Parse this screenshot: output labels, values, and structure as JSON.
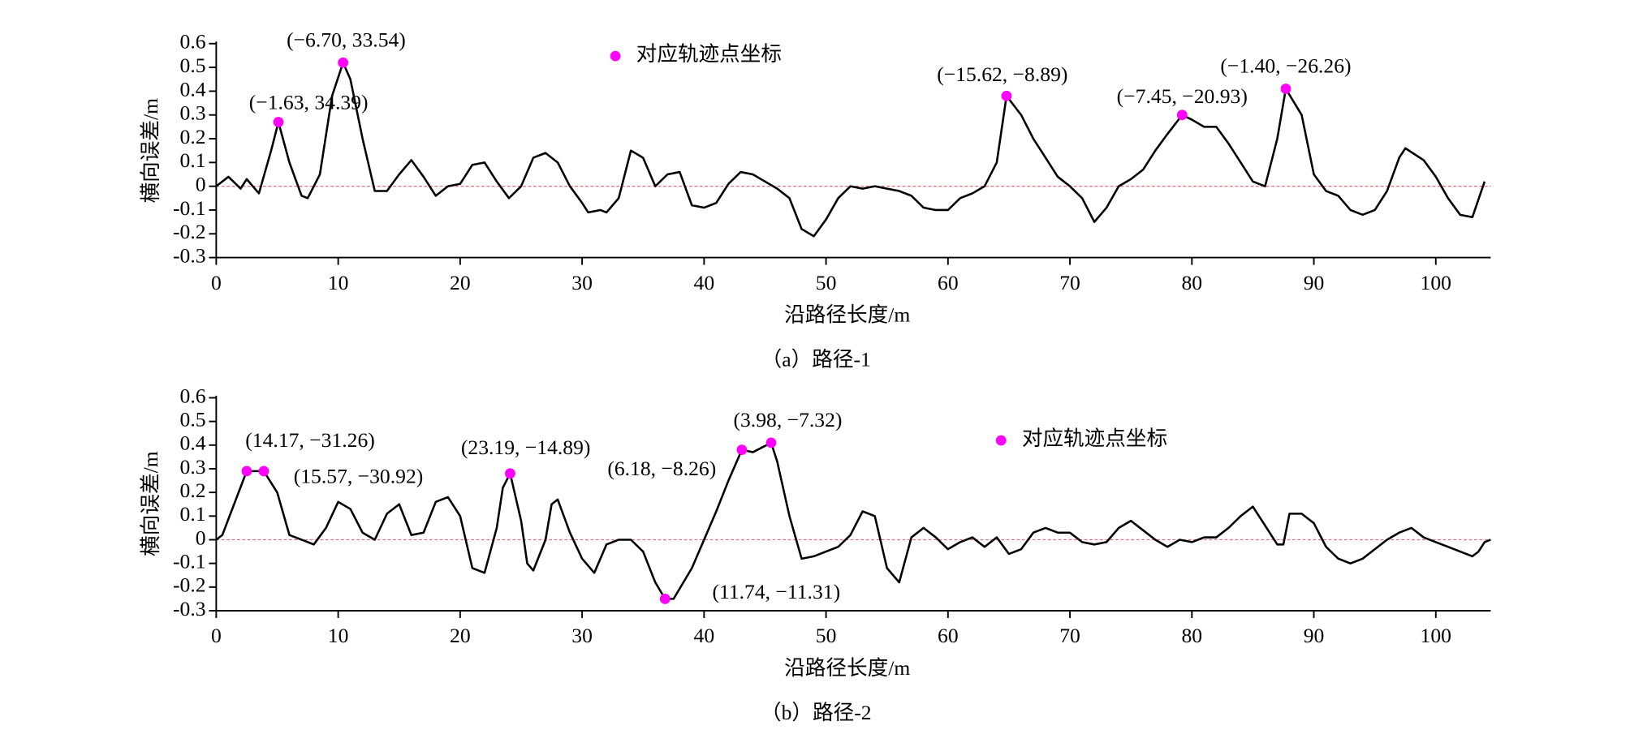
{
  "chart_data": [
    {
      "type": "line",
      "caption": "（a）路径-1",
      "xlabel": "沿路径长度/m",
      "ylabel": "横向误差/m",
      "x": [
        0,
        1,
        2,
        2.5,
        3.5,
        4.5,
        5.1,
        6,
        7,
        7.5,
        8.5,
        9.5,
        10.4,
        11,
        12,
        13,
        14,
        15,
        16,
        17,
        18,
        19,
        20,
        21,
        22,
        23,
        24,
        25,
        26,
        27,
        28,
        29,
        30,
        30.5,
        31.5,
        32,
        33,
        34,
        35,
        36,
        37,
        38,
        39,
        40,
        41,
        42,
        43,
        44,
        45,
        46,
        47,
        48,
        49,
        50,
        51,
        52,
        53,
        54,
        55,
        56,
        57,
        58,
        59,
        60,
        61,
        62,
        63,
        64,
        64.8,
        66,
        67,
        68,
        69,
        70,
        71,
        72,
        73,
        74,
        75,
        76,
        77,
        78,
        79.2,
        80,
        81,
        82,
        83,
        84,
        85,
        86,
        87,
        87.7,
        89,
        90,
        91,
        92,
        93,
        94,
        95,
        96,
        97,
        97.5,
        99,
        100,
        101,
        102,
        103,
        104
      ],
      "series": [
        {
          "color": "#000000",
          "values": [
            0,
            0.04,
            -0.01,
            0.03,
            -0.03,
            0.15,
            0.27,
            0.1,
            -0.04,
            -0.05,
            0.05,
            0.38,
            0.52,
            0.45,
            0.2,
            -0.02,
            -0.02,
            0.05,
            0.11,
            0.04,
            -0.04,
            0,
            0.01,
            0.09,
            0.1,
            0.02,
            -0.05,
            0,
            0.12,
            0.14,
            0.1,
            0,
            -0.07,
            -0.11,
            -0.1,
            -0.11,
            -0.05,
            0.15,
            0.12,
            0,
            0.05,
            0.06,
            -0.08,
            -0.09,
            -0.07,
            0.01,
            0.06,
            0.05,
            0.02,
            -0.01,
            -0.05,
            -0.18,
            -0.21,
            -0.14,
            -0.05,
            0,
            -0.01,
            0,
            -0.01,
            -0.02,
            -0.04,
            -0.09,
            -0.1,
            -0.1,
            -0.05,
            -0.03,
            0,
            0.1,
            0.38,
            0.3,
            0.2,
            0.12,
            0.04,
            0,
            -0.05,
            -0.15,
            -0.09,
            0,
            0.03,
            0.07,
            0.15,
            0.22,
            0.3,
            0.28,
            0.25,
            0.25,
            0.18,
            0.1,
            0.02,
            0,
            0.2,
            0.41,
            0.3,
            0.05,
            -0.02,
            -0.04,
            -0.1,
            -0.12,
            -0.1,
            -0.02,
            0.12,
            0.16,
            0.11,
            0.04,
            -0.05,
            -0.12,
            -0.13,
            0.02
          ]
        }
      ],
      "points": {
        "name": "对应轨迹点坐标",
        "color": "#ff00ff",
        "x": [
          5.1,
          10.4,
          64.8,
          79.2,
          87.7
        ],
        "y": [
          0.27,
          0.52,
          0.38,
          0.3,
          0.41
        ],
        "labels": [
          "(−1.63, 34.39)",
          "(−6.70, 33.54)",
          "(−15.62, −8.89)",
          "(−7.45, −20.93)",
          "(−1.40, −26.26)"
        ]
      },
      "hline": 0,
      "hline_color": "#e07080",
      "xlim": [
        0,
        104.5
      ],
      "xticks": [
        0,
        10,
        20,
        30,
        40,
        50,
        60,
        70,
        80,
        90,
        100
      ],
      "ylim": [
        -0.3,
        0.6
      ],
      "yticks": [
        -0.3,
        -0.2,
        -0.1,
        0,
        0.1,
        0.2,
        0.3,
        0.4,
        0.5,
        0.6
      ]
    },
    {
      "type": "line",
      "caption": "（b）路径-2",
      "xlabel": "沿路径长度/m",
      "ylabel": "横向误差/m",
      "x": [
        0,
        0.5,
        2.5,
        3.9,
        5,
        6,
        7,
        8,
        9,
        10,
        11,
        12,
        13,
        14,
        15,
        16,
        17,
        18,
        19,
        20,
        21,
        22,
        23,
        23.5,
        24.1,
        25,
        25.5,
        26,
        27,
        27.5,
        28,
        29,
        30,
        31,
        32,
        33,
        34,
        35,
        36,
        36.8,
        37.5,
        39,
        40,
        41,
        42,
        43.1,
        44,
        45.5,
        46,
        47,
        48,
        49,
        50,
        51,
        52,
        53,
        54,
        55,
        56,
        57,
        58,
        59,
        60,
        61,
        62,
        63,
        64,
        65,
        66,
        67,
        68,
        69,
        70,
        71,
        72,
        73,
        74,
        75,
        76,
        77,
        78,
        79,
        80,
        81,
        82,
        83,
        84,
        85,
        86,
        87,
        87.5,
        88,
        89,
        90,
        91,
        92,
        93,
        94,
        95,
        96,
        97,
        98,
        99,
        100,
        101,
        102,
        103,
        103.5,
        104,
        104.5
      ],
      "series": [
        {
          "color": "#000000",
          "values": [
            0,
            0.02,
            0.29,
            0.29,
            0.2,
            0.02,
            0,
            -0.02,
            0.05,
            0.16,
            0.13,
            0.03,
            0,
            0.11,
            0.15,
            0.02,
            0.03,
            0.16,
            0.18,
            0.1,
            -0.12,
            -0.14,
            0.05,
            0.22,
            0.28,
            0.08,
            -0.1,
            -0.13,
            0,
            0.15,
            0.17,
            0.03,
            -0.08,
            -0.14,
            -0.02,
            0,
            0,
            -0.05,
            -0.18,
            -0.25,
            -0.25,
            -0.12,
            0,
            0.12,
            0.25,
            0.38,
            0.37,
            0.41,
            0.33,
            0.1,
            -0.08,
            -0.07,
            -0.05,
            -0.03,
            0.02,
            0.12,
            0.1,
            -0.12,
            -0.18,
            0.01,
            0.05,
            0.01,
            -0.04,
            -0.01,
            0.01,
            -0.03,
            0.01,
            -0.06,
            -0.04,
            0.03,
            0.05,
            0.03,
            0.03,
            -0.01,
            -0.02,
            -0.01,
            0.05,
            0.08,
            0.04,
            0,
            -0.03,
            0,
            -0.01,
            0.01,
            0.01,
            0.05,
            0.1,
            0.14,
            0.06,
            -0.02,
            -0.02,
            0.11,
            0.11,
            0.07,
            -0.03,
            -0.08,
            -0.1,
            -0.08,
            -0.04,
            0,
            0.03,
            0.05,
            0.01,
            -0.01,
            -0.03,
            -0.05,
            -0.07,
            -0.05,
            -0.01,
            0
          ]
        }
      ],
      "points": {
        "name": "对应轨迹点坐标",
        "color": "#ff00ff",
        "x": [
          2.5,
          3.9,
          24.1,
          36.8,
          43.1,
          45.5
        ],
        "y": [
          0.29,
          0.29,
          0.28,
          -0.25,
          0.38,
          0.41
        ],
        "labels": [
          "(14.17, −31.26)",
          "(15.57, −30.92)",
          "(23.19, −14.89)",
          "(11.74, −11.31)",
          "(6.18, −8.26)",
          "(3.98, −7.32)"
        ]
      },
      "hline": 0,
      "hline_color": "#e07080",
      "xlim": [
        0,
        104.5
      ],
      "xticks": [
        0,
        10,
        20,
        30,
        40,
        50,
        60,
        70,
        80,
        90,
        100
      ],
      "ylim": [
        -0.3,
        0.6
      ],
      "yticks": [
        -0.3,
        -0.2,
        -0.1,
        0,
        0.1,
        0.2,
        0.3,
        0.4,
        0.5,
        0.6
      ]
    }
  ]
}
